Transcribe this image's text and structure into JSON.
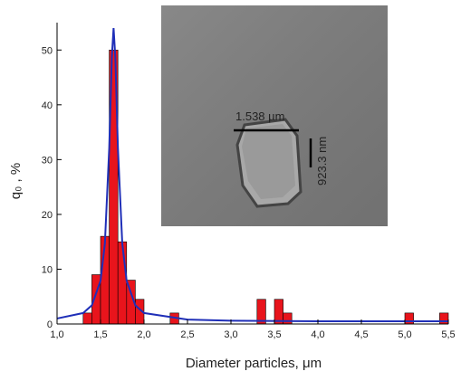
{
  "chart_data": {
    "type": "histogram",
    "x_label": "Diameter particles, μm",
    "y_label": "q₀ , %",
    "bins": [
      1.3,
      1.4,
      1.5,
      1.6,
      1.7,
      1.8,
      1.9,
      2.0,
      2.1,
      2.2,
      2.3,
      2.4,
      2.5,
      2.6,
      2.7,
      2.8,
      2.9,
      3.0,
      3.1,
      3.2,
      3.3,
      3.4,
      3.5,
      3.6,
      3.7,
      3.8,
      3.9,
      4.0,
      4.1,
      4.2,
      4.3,
      4.4,
      4.5,
      4.6,
      4.7,
      4.8,
      4.9,
      5.0,
      5.1,
      5.2,
      5.3,
      5.4,
      5.5
    ],
    "values": [
      2,
      9,
      16,
      50,
      15,
      8,
      4.5,
      0,
      0,
      0,
      2,
      0,
      0,
      0,
      0,
      0,
      0,
      0,
      0,
      0,
      4.5,
      0,
      4.5,
      2,
      0,
      0,
      0,
      0,
      0,
      0,
      0,
      0,
      0,
      0,
      0,
      0,
      0,
      2,
      0,
      0,
      0,
      2
    ],
    "color": "#e8141c",
    "fit": {
      "color": "#1f2fb8",
      "x": [
        1.0,
        1.3,
        1.4,
        1.5,
        1.55,
        1.6,
        1.63,
        1.65,
        1.67,
        1.7,
        1.75,
        1.8,
        1.9,
        2.0,
        2.5,
        3.0,
        4.0,
        5.5
      ],
      "values": [
        1.0,
        2.0,
        3.4,
        7.9,
        14.7,
        32.1,
        48.7,
        54,
        48.7,
        32.1,
        14.7,
        7.9,
        3.4,
        2.0,
        0.8,
        0.6,
        0.5,
        0.5
      ]
    },
    "xlim": [
      1.0,
      5.5
    ],
    "ylim": [
      0,
      55
    ],
    "xticks": [
      {
        "value": 1.0,
        "label": "1,0"
      },
      {
        "value": 1.5,
        "label": "1,5"
      },
      {
        "value": 2.0,
        "label": "2,0"
      },
      {
        "value": 2.5,
        "label": "2,5"
      },
      {
        "value": 3.0,
        "label": "3,0"
      },
      {
        "value": 3.5,
        "label": "3,5"
      },
      {
        "value": 4.0,
        "label": "4,0"
      },
      {
        "value": 4.5,
        "label": "4,5"
      },
      {
        "value": 5.0,
        "label": "5,0"
      },
      {
        "value": 5.5,
        "label": "5,5"
      }
    ],
    "yticks": [
      0,
      10,
      20,
      30,
      40,
      50
    ],
    "inset": {
      "width_label": "1.538 µm",
      "height_label": "923.3 nm"
    }
  }
}
